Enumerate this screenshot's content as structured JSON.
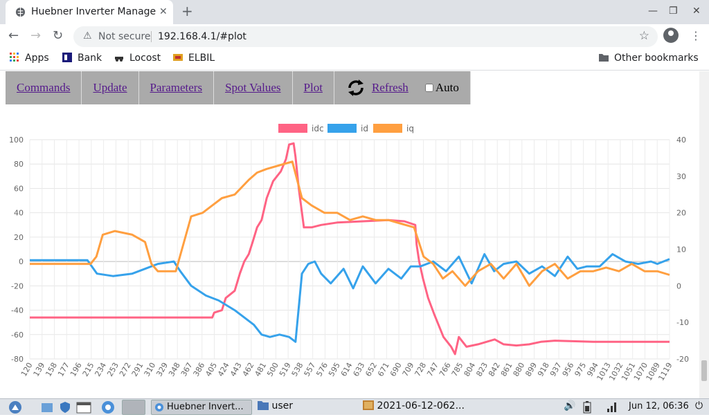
{
  "browser": {
    "tab_title": "Huebner Inverter Manage",
    "tab_close": "✕",
    "new_tab": "+",
    "not_secure": "Not secure",
    "url": "192.168.4.1/#plot"
  },
  "bookmarks": [
    {
      "label": "Apps",
      "icon": "apps-grid-icon",
      "color": "#e8453c"
    },
    {
      "label": "Bank",
      "icon": "bank-icon",
      "color": "#1a1a7a"
    },
    {
      "label": "Locost",
      "icon": "car-icon",
      "color": "#333"
    },
    {
      "label": "ELBIL",
      "icon": "elbil-icon",
      "color": "#e0a020"
    }
  ],
  "other_bookmarks": "Other bookmarks",
  "nav": {
    "items": [
      "Commands",
      "Update",
      "Parameters",
      "Spot Values",
      "Plot"
    ],
    "refresh": "Refresh",
    "auto": "Auto"
  },
  "taskbar": {
    "window1": "Huebner Invert...",
    "window2": "user",
    "window3": "2021-06-12-062...",
    "clock": "Jun 12, 06:36"
  },
  "colors": {
    "idc": "#ff6384",
    "id": "#36a2eb",
    "iq": "#ff9f40"
  },
  "chart_data": {
    "type": "line",
    "legend": [
      "idc",
      "id",
      "iq"
    ],
    "legend_position": "top",
    "grid": true,
    "x_ticks": [
      120,
      139,
      158,
      177,
      196,
      215,
      234,
      253,
      272,
      291,
      310,
      329,
      348,
      367,
      386,
      405,
      424,
      443,
      462,
      481,
      500,
      519,
      538,
      557,
      576,
      595,
      614,
      633,
      652,
      671,
      690,
      709,
      728,
      747,
      766,
      785,
      804,
      823,
      842,
      861,
      880,
      899,
      918,
      937,
      956,
      975,
      994,
      1013,
      1032,
      1051,
      1070,
      1089,
      1119
    ],
    "x_range": [
      120,
      1119
    ],
    "y_left": {
      "range": [
        -80,
        100
      ],
      "ticks": [
        100,
        80,
        60,
        40,
        20,
        0,
        -20,
        -40,
        -60,
        -80
      ]
    },
    "y_right": {
      "range": [
        -20,
        40
      ],
      "ticks": [
        40,
        30,
        20,
        10,
        0,
        -10,
        -20
      ]
    },
    "series": [
      {
        "name": "idc",
        "axis": "left",
        "points": [
          [
            120,
            -46
          ],
          [
            300,
            -46
          ],
          [
            405,
            -46
          ],
          [
            408,
            -42
          ],
          [
            420,
            -40
          ],
          [
            426,
            -30
          ],
          [
            440,
            -24
          ],
          [
            448,
            -10
          ],
          [
            455,
            0
          ],
          [
            462,
            6
          ],
          [
            468,
            16
          ],
          [
            475,
            28
          ],
          [
            482,
            34
          ],
          [
            490,
            52
          ],
          [
            500,
            66
          ],
          [
            512,
            74
          ],
          [
            520,
            84
          ],
          [
            525,
            96
          ],
          [
            532,
            97
          ],
          [
            535,
            86
          ],
          [
            540,
            60
          ],
          [
            548,
            28
          ],
          [
            560,
            28
          ],
          [
            575,
            30
          ],
          [
            600,
            32
          ],
          [
            640,
            33
          ],
          [
            680,
            34
          ],
          [
            705,
            33
          ],
          [
            722,
            30
          ],
          [
            724,
            14
          ],
          [
            728,
            0
          ],
          [
            734,
            -14
          ],
          [
            742,
            -30
          ],
          [
            752,
            -44
          ],
          [
            766,
            -62
          ],
          [
            778,
            -70
          ],
          [
            784,
            -76
          ],
          [
            790,
            -62
          ],
          [
            802,
            -70
          ],
          [
            820,
            -68
          ],
          [
            846,
            -64
          ],
          [
            860,
            -68
          ],
          [
            880,
            -69
          ],
          [
            900,
            -68
          ],
          [
            918,
            -66
          ],
          [
            940,
            -65
          ],
          [
            1000,
            -66
          ],
          [
            1119,
            -66
          ]
        ]
      },
      {
        "name": "id",
        "axis": "left",
        "points": [
          [
            120,
            1
          ],
          [
            210,
            1
          ],
          [
            225,
            -10
          ],
          [
            250,
            -12
          ],
          [
            280,
            -10
          ],
          [
            300,
            -6
          ],
          [
            320,
            -2
          ],
          [
            345,
            0
          ],
          [
            355,
            -8
          ],
          [
            372,
            -20
          ],
          [
            395,
            -28
          ],
          [
            415,
            -32
          ],
          [
            440,
            -40
          ],
          [
            455,
            -46
          ],
          [
            470,
            -52
          ],
          [
            482,
            -60
          ],
          [
            495,
            -62
          ],
          [
            510,
            -60
          ],
          [
            525,
            -62
          ],
          [
            535,
            -66
          ],
          [
            545,
            -10
          ],
          [
            555,
            -2
          ],
          [
            565,
            0
          ],
          [
            575,
            -10
          ],
          [
            590,
            -18
          ],
          [
            610,
            -6
          ],
          [
            625,
            -22
          ],
          [
            640,
            -4
          ],
          [
            660,
            -18
          ],
          [
            680,
            -6
          ],
          [
            700,
            -14
          ],
          [
            715,
            -4
          ],
          [
            730,
            -4
          ],
          [
            750,
            0
          ],
          [
            770,
            -8
          ],
          [
            790,
            4
          ],
          [
            810,
            -18
          ],
          [
            830,
            6
          ],
          [
            845,
            -8
          ],
          [
            860,
            -2
          ],
          [
            880,
            0
          ],
          [
            900,
            -10
          ],
          [
            920,
            -4
          ],
          [
            940,
            -12
          ],
          [
            960,
            4
          ],
          [
            975,
            -6
          ],
          [
            990,
            -4
          ],
          [
            1010,
            -4
          ],
          [
            1030,
            6
          ],
          [
            1050,
            0
          ],
          [
            1070,
            -2
          ],
          [
            1090,
            0
          ],
          [
            1100,
            -2
          ],
          [
            1119,
            2
          ]
        ]
      },
      {
        "name": "iq",
        "axis": "right",
        "points": [
          [
            120,
            6
          ],
          [
            215,
            6
          ],
          [
            224,
            8
          ],
          [
            234,
            14
          ],
          [
            253,
            15
          ],
          [
            280,
            14
          ],
          [
            300,
            12
          ],
          [
            310,
            6
          ],
          [
            320,
            4
          ],
          [
            348,
            4
          ],
          [
            364,
            14
          ],
          [
            372,
            19
          ],
          [
            390,
            20
          ],
          [
            405,
            22
          ],
          [
            420,
            24
          ],
          [
            440,
            25
          ],
          [
            462,
            29
          ],
          [
            475,
            31
          ],
          [
            490,
            32
          ],
          [
            510,
            33
          ],
          [
            530,
            34
          ],
          [
            545,
            24
          ],
          [
            560,
            22
          ],
          [
            580,
            20
          ],
          [
            600,
            20
          ],
          [
            620,
            18
          ],
          [
            640,
            19
          ],
          [
            660,
            18
          ],
          [
            680,
            18
          ],
          [
            700,
            17
          ],
          [
            720,
            16
          ],
          [
            735,
            8
          ],
          [
            750,
            6
          ],
          [
            765,
            2
          ],
          [
            780,
            4
          ],
          [
            800,
            0
          ],
          [
            820,
            4
          ],
          [
            840,
            6
          ],
          [
            860,
            2
          ],
          [
            880,
            6
          ],
          [
            900,
            0
          ],
          [
            920,
            4
          ],
          [
            940,
            6
          ],
          [
            960,
            2
          ],
          [
            980,
            4
          ],
          [
            1000,
            4
          ],
          [
            1020,
            5
          ],
          [
            1040,
            4
          ],
          [
            1060,
            6
          ],
          [
            1080,
            4
          ],
          [
            1100,
            4
          ],
          [
            1119,
            3
          ]
        ]
      }
    ]
  }
}
